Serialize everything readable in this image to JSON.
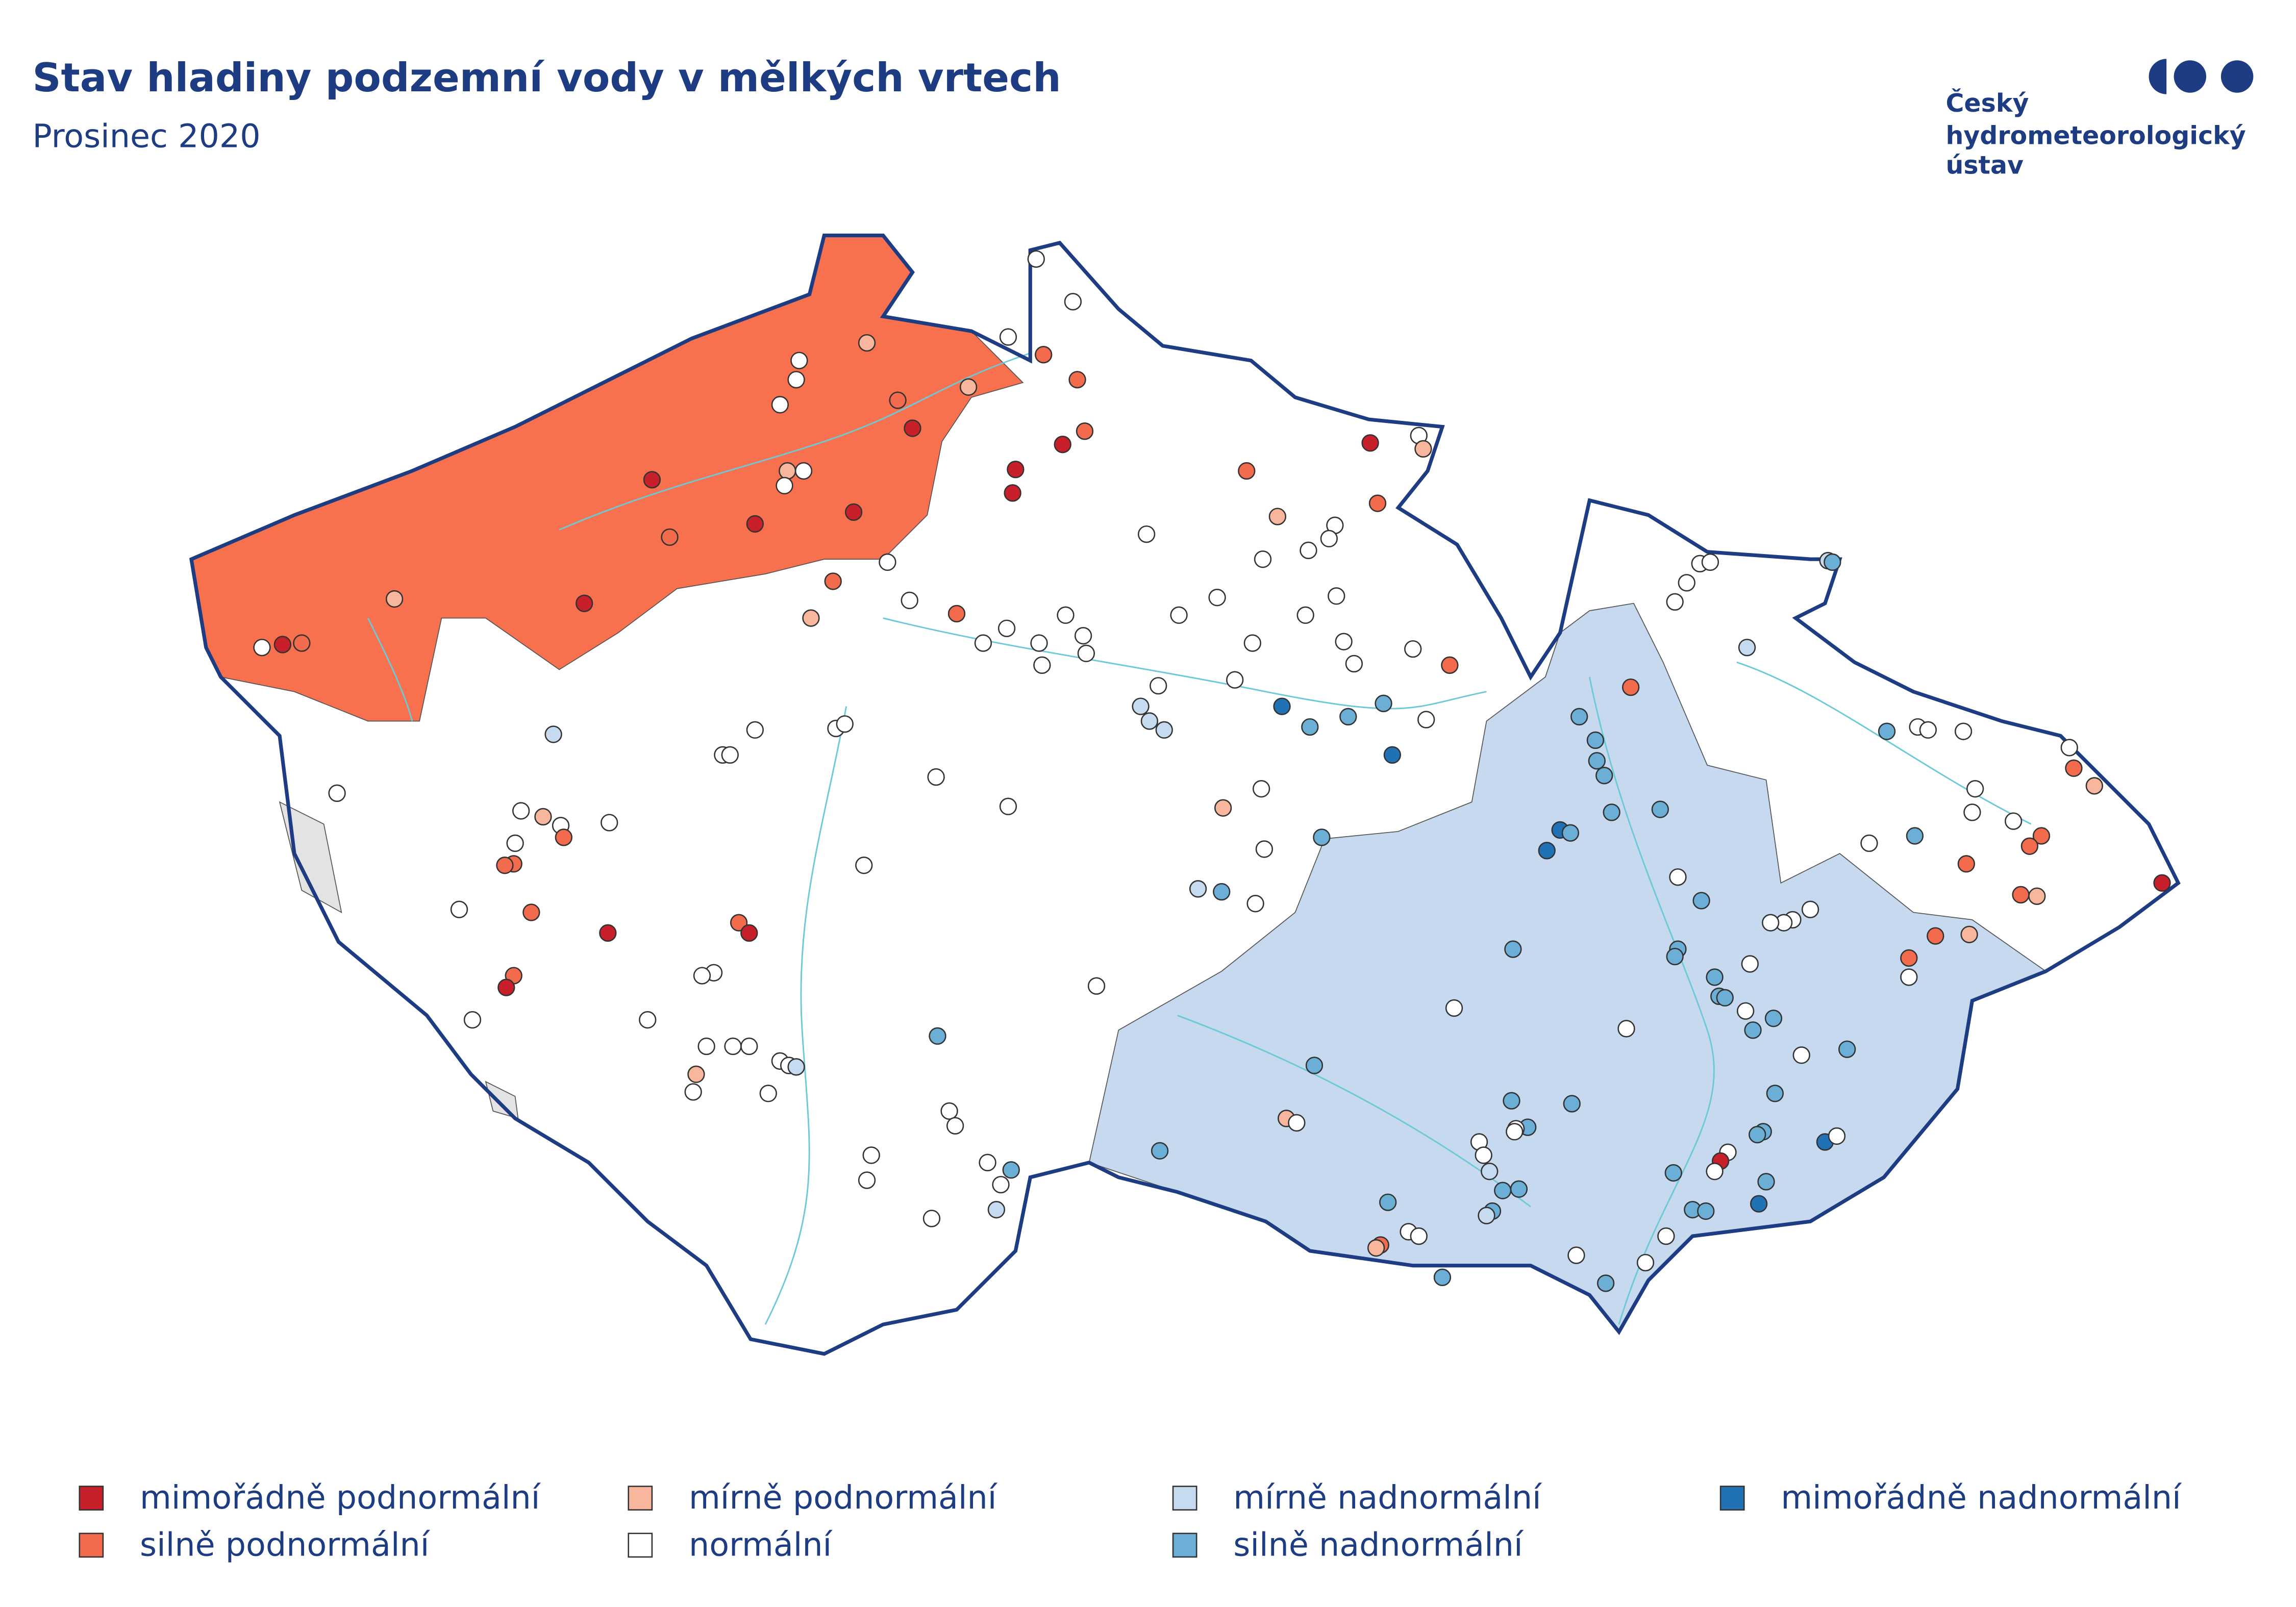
{
  "header": {
    "title": "Stav hladiny podzemní vody v mělkých vrtech",
    "subtitle": "Prosinec 2020"
  },
  "logo": {
    "lines": [
      "Český",
      "hydrometeorologický",
      "ústav"
    ]
  },
  "legend": {
    "items": [
      {
        "label": "mimořádně podnormální",
        "color": "#c8202a"
      },
      {
        "label": "silně podnormální",
        "color": "#f26b4c"
      },
      {
        "label": "mírně podnormální",
        "color": "#f8b79c"
      },
      {
        "label": "normální",
        "color": "#ffffff"
      },
      {
        "label": "mírně nadnormální",
        "color": "#c6dbef"
      },
      {
        "label": "silně nadnormální",
        "color": "#6baed6"
      },
      {
        "label": "mimořádně nadnormální",
        "color": "#2171b5"
      }
    ]
  }
}
